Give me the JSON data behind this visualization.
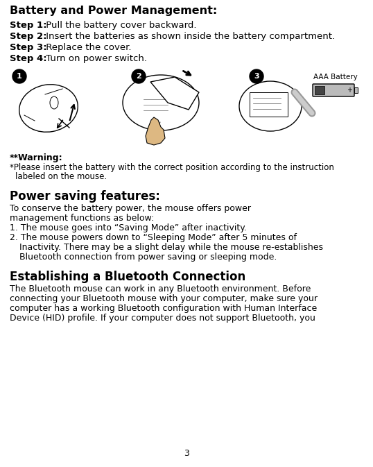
{
  "bg_color": "#ffffff",
  "title": "Battery and Power Management:",
  "title_fontsize": 11.5,
  "steps": [
    {
      "bold": "Step 1:",
      "text": " Pull the battery cover backward."
    },
    {
      "bold": "Step 2:",
      "text": " Insert the batteries as shown inside the battery compartment."
    },
    {
      "bold": "Step 3:",
      "text": " Replace the cover."
    },
    {
      "bold": "Step 4:",
      "text": " Turn on power switch."
    }
  ],
  "step_fontsize": 9.5,
  "warning_bold": "**Warning:",
  "warning_fontsize": 9.0,
  "section2_title": "Power saving features:",
  "section2_title_fontsize": 12.0,
  "section3_title": "Establishing a Bluetooth Connection",
  "section3_title_fontsize": 12.0,
  "page_number": "3",
  "body_fontsize": 9.0,
  "lm_pts": 14,
  "rm_pts": 10
}
